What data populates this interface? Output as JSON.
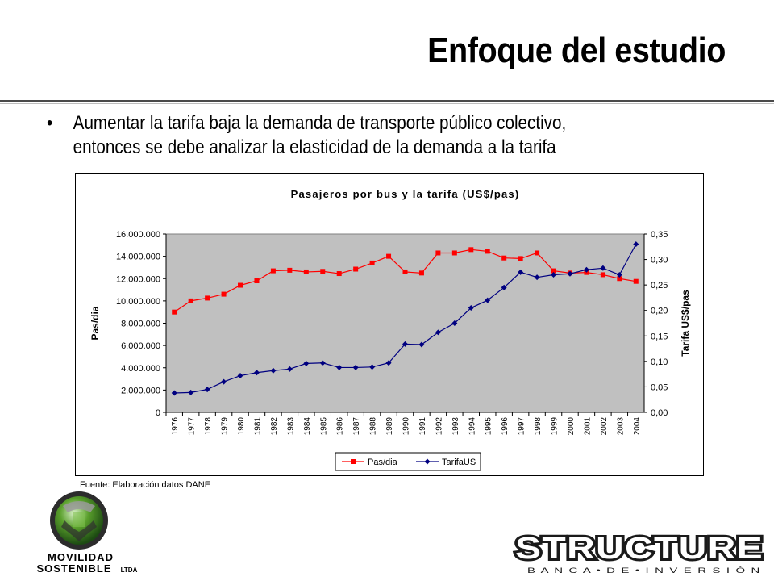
{
  "slide": {
    "title": "Enfoque del estudio",
    "bullet_marker": "•",
    "bullet_line1": "Aumentar la tarifa baja la demanda de transporte público colectivo,",
    "bullet_line2": "entonces se debe analizar la elasticidad de la demanda a la tarifa",
    "source": "Fuente: Elaboración datos DANE"
  },
  "logos": {
    "left_line1": "MOVILIDAD",
    "left_line2": "SOSTENIBLE",
    "left_suffix": "LTDA",
    "right_name": "STRUCTURE",
    "right_tagline": "B A N C A • D E • I N V E R S I Ó N"
  },
  "chart_data": {
    "type": "line",
    "title": "Pasajeros por bus y la tarifa (US$/pas)",
    "ylabel": "Pas/dia",
    "y2label": "Tarifa US$/pas",
    "x": [
      "1976",
      "1977",
      "1978",
      "1979",
      "1980",
      "1981",
      "1982",
      "1983",
      "1984",
      "1985",
      "1986",
      "1987",
      "1988",
      "1989",
      "1990",
      "1991",
      "1992",
      "1993",
      "1994",
      "1995",
      "1996",
      "1997",
      "1998",
      "1999",
      "2000",
      "2001",
      "2002",
      "2003",
      "2004"
    ],
    "ylim": [
      0,
      16000000
    ],
    "y2lim": [
      0,
      0.35
    ],
    "yticks": [
      "0",
      "2.000.000",
      "4.000.000",
      "6.000.000",
      "8.000.000",
      "10.000.000",
      "12.000.000",
      "14.000.000",
      "16.000.000"
    ],
    "y2ticks": [
      "0,00",
      "0,05",
      "0,10",
      "0,15",
      "0,20",
      "0,25",
      "0,30",
      "0,35"
    ],
    "plot_background": "#c0c0c0",
    "legend_position": "bottom",
    "series": [
      {
        "name": "Pas/dia",
        "axis": "left",
        "color": "#ff0000",
        "marker": "square",
        "values": [
          9000000,
          10000000,
          10250000,
          10600000,
          11400000,
          11800000,
          12700000,
          12750000,
          12600000,
          12650000,
          12450000,
          12850000,
          13400000,
          14000000,
          12600000,
          12500000,
          14300000,
          14300000,
          14600000,
          14450000,
          13850000,
          13800000,
          14300000,
          12700000,
          12500000,
          12550000,
          12350000,
          12000000,
          11750000
        ]
      },
      {
        "name": "TarifaUS",
        "axis": "right",
        "color": "#000080",
        "marker": "diamond",
        "values": [
          0.038,
          0.039,
          0.045,
          0.06,
          0.072,
          0.078,
          0.082,
          0.085,
          0.096,
          0.097,
          0.088,
          0.088,
          0.089,
          0.097,
          0.134,
          0.133,
          0.157,
          0.175,
          0.205,
          0.22,
          0.245,
          0.275,
          0.265,
          0.27,
          0.272,
          0.28,
          0.283,
          0.27,
          0.33
        ]
      }
    ]
  }
}
